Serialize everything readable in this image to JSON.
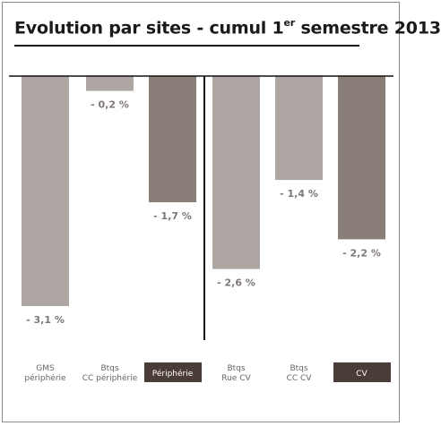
{
  "title": {
    "text": "Evolution par sites - cumul 1",
    "superscript": "er",
    "suffix": " semestre 2013"
  },
  "colors": {
    "light_bar": "#aea6a3",
    "dark_bar": "#8a7f78",
    "axis": "#111111",
    "value_label": "#7d7775",
    "category_label": "#6a6462",
    "highlight_label_bg": "#4a3d37",
    "highlight_label_text": "#ffffff"
  },
  "chart_data": {
    "type": "bar",
    "title": "Evolution par sites - cumul 1er semestre 2013",
    "ylim": [
      -3.1,
      0
    ],
    "grid": false,
    "categories": [
      [
        "GMS",
        "périphérie"
      ],
      [
        "Btqs",
        "CC périphérie"
      ],
      [
        "Périphérie"
      ],
      [
        "Btqs",
        "Rue CV"
      ],
      [
        "Btqs",
        "CC CV"
      ],
      [
        "CV"
      ]
    ],
    "values": [
      -3.1,
      -0.2,
      -1.7,
      -2.6,
      -1.4,
      -2.2
    ],
    "value_labels": [
      "- 3,1 %",
      "- 0,2 %",
      "- 1,7 %",
      "- 2,6 %",
      "- 1,4 %",
      "- 2,2 %"
    ],
    "is_total": [
      false,
      false,
      true,
      false,
      false,
      true
    ],
    "groups": [
      "périphérie",
      "CV"
    ]
  }
}
